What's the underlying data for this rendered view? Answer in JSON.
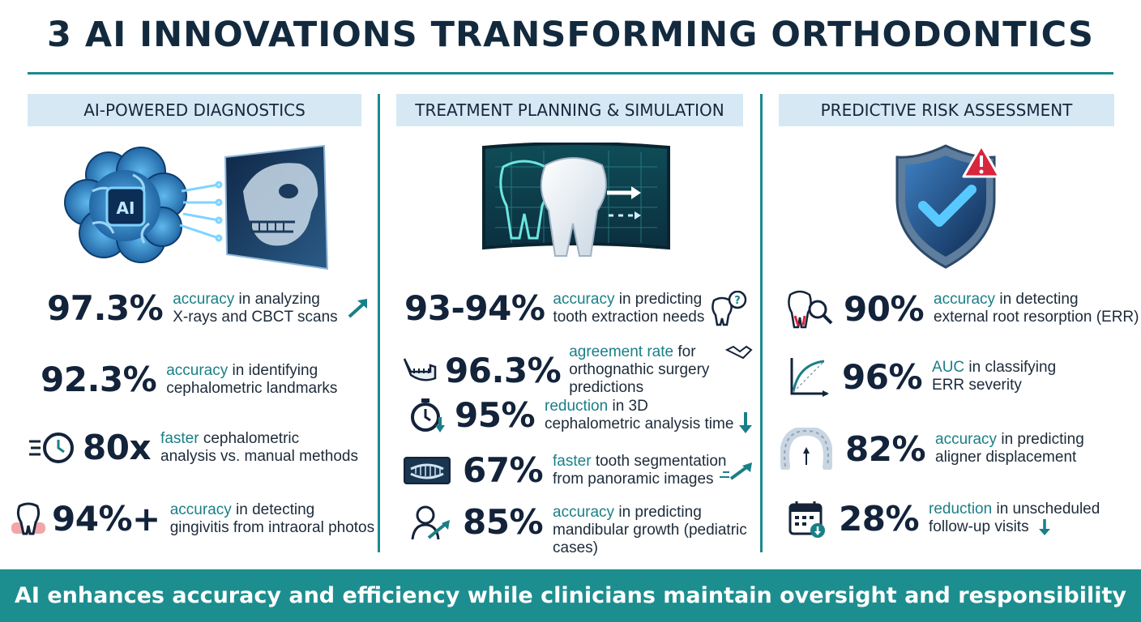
{
  "title": "3 AI INNOVATIONS TRANSFORMING ORTHODONTICS",
  "colors": {
    "accent": "#1b8a8f",
    "header_bg": "#d6e8f4",
    "text": "#132a3e",
    "highlight": "#1a7f87",
    "footer_bg": "#1d8e8f",
    "alert": "#d7263d"
  },
  "columns": [
    {
      "header": "AI-POWERED DIAGNOSTICS",
      "hero_icon": "ai-brain-xray-skull-icon",
      "hero_badge": "AI",
      "stats": [
        {
          "value": "97.3%",
          "highlight": "accuracy",
          "rest1": " in analyzing",
          "line2": "X-rays and CBCT scans",
          "icon": "trend-up-arrow-icon"
        },
        {
          "value": "92.3%",
          "highlight": "accuracy",
          "rest1": " in identifying",
          "line2": "cephalometric landmarks",
          "icon": ""
        },
        {
          "value": "80x",
          "highlight": "faster",
          "rest1": " cephalometric",
          "line2": "analysis vs. manual methods",
          "icon": "fast-clock-icon"
        },
        {
          "value": "94%+",
          "highlight": "accuracy",
          "rest1": " in detecting",
          "line2": "gingivitis from intraoral photos",
          "icon": "inflamed-tooth-icon"
        }
      ]
    },
    {
      "header": "TREATMENT PLANNING & SIMULATION",
      "hero_icon": "tooth-3d-simulation-icon",
      "stats": [
        {
          "value": "93-94%",
          "highlight": "accuracy",
          "rest1": " in predicting",
          "line2": "tooth extraction needs",
          "icon": "tooth-question-icon"
        },
        {
          "value": "96.3%",
          "highlight": "agreement rate",
          "rest1": " for",
          "line2": "orthognathic surgery predictions",
          "icon": "handshake-icon",
          "lead_icon": "jaw-icon"
        },
        {
          "value": "95%",
          "highlight": "reduction",
          "rest1": " in 3D",
          "line2": "cephalometric analysis time",
          "icon": "down-arrow-icon",
          "lead_icon": "stopwatch-down-icon"
        },
        {
          "value": "67%",
          "highlight": "faster",
          "rest1": " tooth segmentation",
          "line2": "from panoramic images",
          "icon": "trend-up-arrow-icon",
          "lead_icon": "panoramic-xray-icon"
        },
        {
          "value": "85%",
          "highlight": "accuracy",
          "rest1": " in predicting",
          "line2": "mandibular growth (pediatric",
          "line3": "cases)",
          "icon": "",
          "lead_icon": "child-growth-icon"
        }
      ]
    },
    {
      "header": "PREDICTIVE RISK ASSESSMENT",
      "hero_icon": "shield-check-alert-icon",
      "stats": [
        {
          "value": "90%",
          "highlight": "accuracy",
          "rest1": " in detecting",
          "line2": "external root resorption (ERR)",
          "lead_icon": "tooth-magnifier-icon"
        },
        {
          "value": "96%",
          "highlight": "AUC",
          "rest1": " in classifying",
          "line2": "ERR severity",
          "lead_icon": "roc-curve-icon"
        },
        {
          "value": "82%",
          "highlight": "accuracy",
          "rest1": " in predicting",
          "line2": "aligner displacement",
          "lead_icon": "aligner-icon"
        },
        {
          "value": "28%",
          "highlight": "reduction",
          "rest1": " in unscheduled",
          "line2": "follow-up visits",
          "icon": "down-arrow-icon",
          "lead_icon": "calendar-down-icon"
        }
      ]
    }
  ],
  "footer": "AI enhances accuracy and efficiency while clinicians maintain oversight and responsibility"
}
